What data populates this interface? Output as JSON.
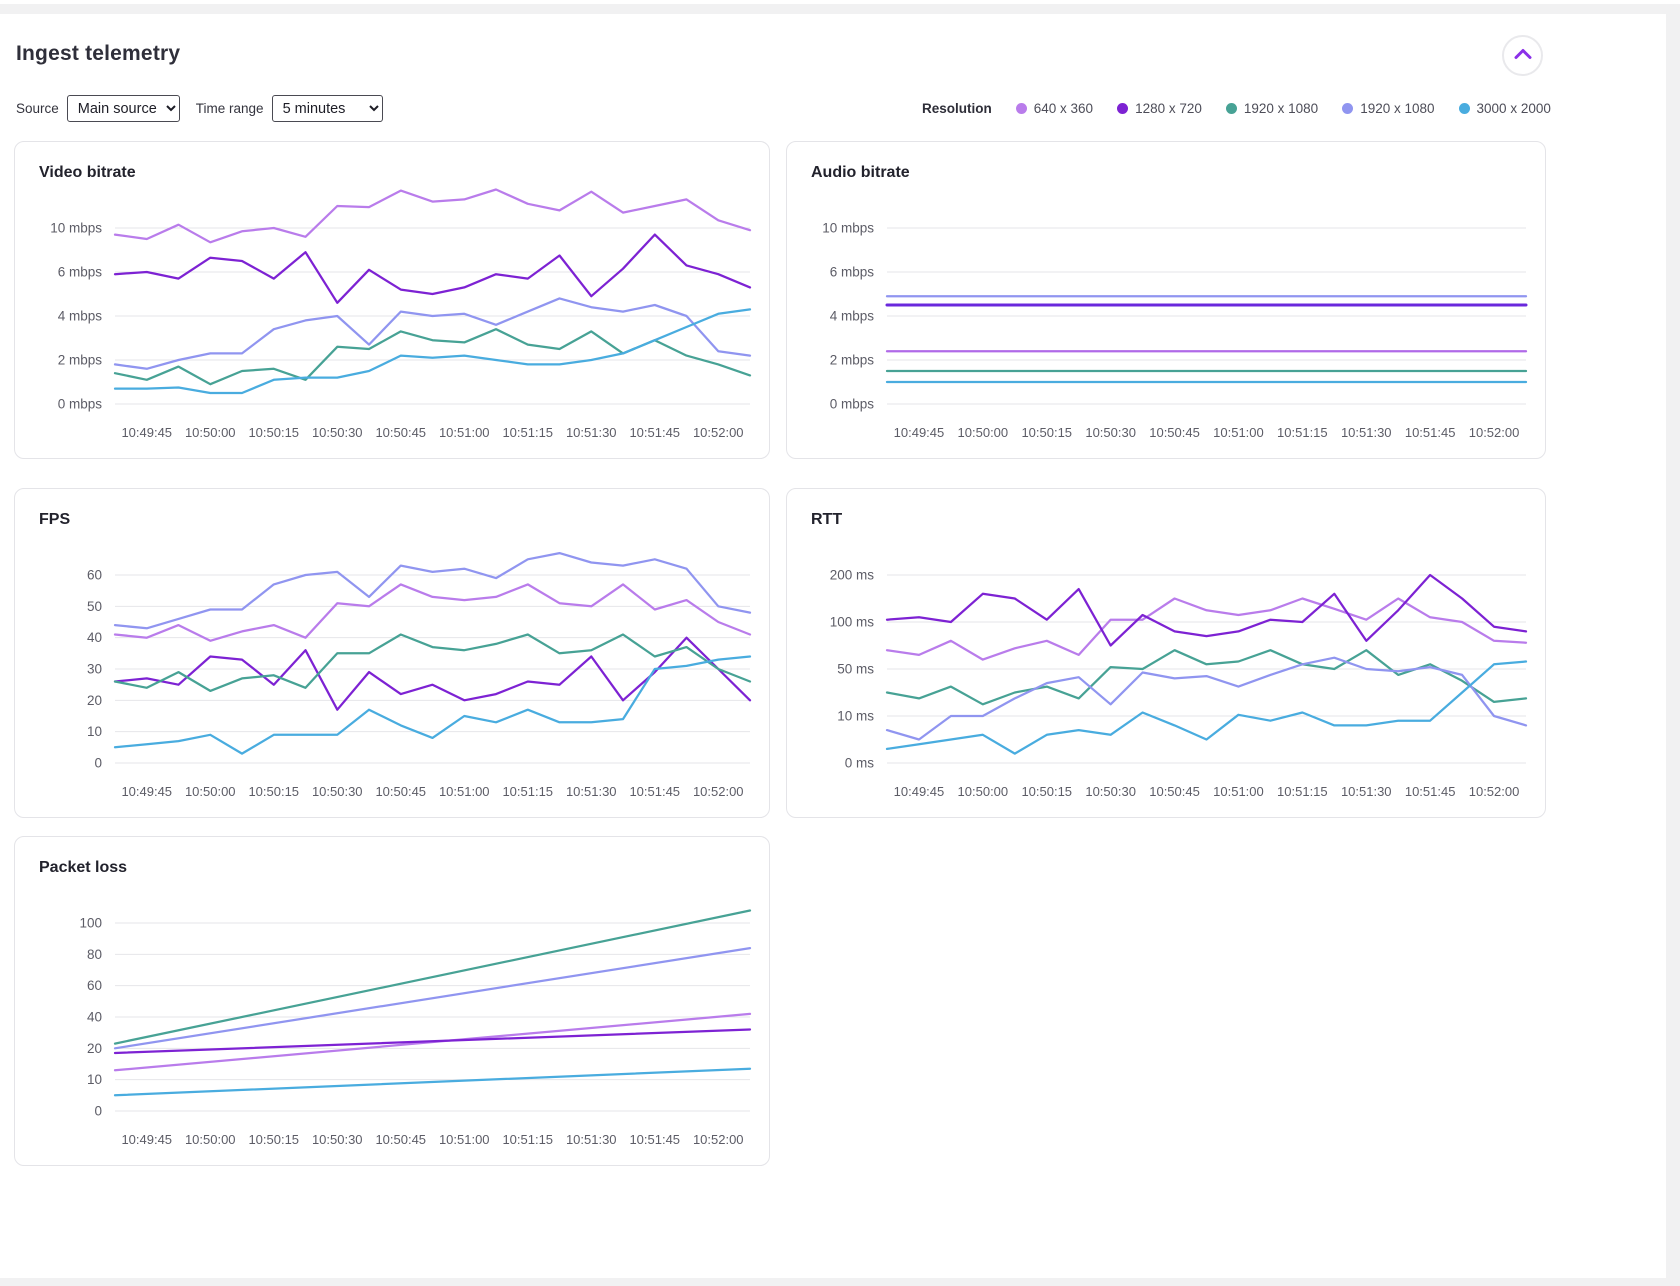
{
  "header": {
    "title": "Ingest telemetry",
    "collapse_button": {
      "icon": "chevron-up-icon",
      "color": "#8b30e8"
    }
  },
  "controls": {
    "source_label": "Source",
    "source_value": "Main source",
    "time_range_label": "Time range",
    "time_range_value": "5 minutes"
  },
  "legend": {
    "title": "Resolution",
    "items": [
      {
        "label": "640 x 360",
        "color": "#b97ceb"
      },
      {
        "label": "1280 x 720",
        "color": "#7d22d3"
      },
      {
        "label": "1920 x 1080",
        "color": "#47a295"
      },
      {
        "label": "1920 x 1080",
        "color": "#9095f0"
      },
      {
        "label": "3000 x 2000",
        "color": "#49acdf"
      }
    ]
  },
  "x_labels": [
    "10:49:45",
    "10:50:00",
    "10:50:15",
    "10:50:30",
    "10:50:45",
    "10:51:00",
    "10:51:15",
    "10:51:30",
    "10:51:45",
    "10:52:00"
  ],
  "chart_data": [
    {
      "id": "video-bitrate",
      "type": "line",
      "title": "Video bitrate",
      "y_scale": "piecewise-even-ticks",
      "grid": true,
      "legend_position": "top-right-of-page",
      "y_ticks": {
        "values": [
          0,
          2,
          4,
          6,
          10
        ],
        "labels": [
          "0 mbps",
          "2 mbps",
          "4 mbps",
          "6 mbps",
          "10 mbps"
        ]
      },
      "series": [
        {
          "name": "640 x 360",
          "color": "#b97ceb",
          "values": [
            9.4,
            9.0,
            10.3,
            8.7,
            9.7,
            10.0,
            9.2,
            12.0,
            11.9,
            13.4,
            12.4,
            12.6,
            13.5,
            12.2,
            11.6,
            13.3,
            11.4,
            12.0,
            12.6,
            10.7,
            9.8
          ]
        },
        {
          "name": "1280 x 720",
          "color": "#7d22d3",
          "values": [
            5.9,
            6.0,
            5.7,
            7.3,
            7.0,
            5.7,
            7.8,
            4.6,
            6.2,
            5.2,
            5.0,
            5.3,
            5.9,
            5.7,
            7.5,
            4.9,
            6.3,
            9.4,
            6.6,
            5.9,
            5.3
          ]
        },
        {
          "name": "1920 x 1080",
          "color": "#47a295",
          "values": [
            1.4,
            1.1,
            1.7,
            0.9,
            1.5,
            1.6,
            1.1,
            2.6,
            2.5,
            3.3,
            2.9,
            2.8,
            3.4,
            2.7,
            2.5,
            3.3,
            2.3,
            2.9,
            2.2,
            1.8,
            1.3
          ]
        },
        {
          "name": "1920 x 1080 (2)",
          "color": "#9095f0",
          "values": [
            1.8,
            1.6,
            2.0,
            2.3,
            2.3,
            3.4,
            3.8,
            4.0,
            2.7,
            4.2,
            4.0,
            4.1,
            3.6,
            4.2,
            4.8,
            4.4,
            4.2,
            4.5,
            4.0,
            2.4,
            2.2
          ]
        },
        {
          "name": "3000 x 2000",
          "color": "#49acdf",
          "values": [
            0.7,
            0.7,
            0.75,
            0.5,
            0.5,
            1.1,
            1.2,
            1.2,
            1.5,
            2.2,
            2.1,
            2.2,
            2.0,
            1.8,
            1.8,
            2.0,
            2.3,
            2.9,
            3.5,
            4.1,
            4.3
          ]
        }
      ]
    },
    {
      "id": "audio-bitrate",
      "type": "line",
      "title": "Audio bitrate",
      "y_scale": "piecewise-even-ticks",
      "grid": true,
      "y_ticks": {
        "values": [
          0,
          2,
          4,
          6,
          10
        ],
        "labels": [
          "0 mbps",
          "2 mbps",
          "4 mbps",
          "6 mbps",
          "10 mbps"
        ]
      },
      "series": [
        {
          "name": "1920 x 1080 (2)",
          "color": "#9095f0",
          "values": [
            4.9,
            4.9
          ]
        },
        {
          "name": "1280 x 720",
          "color": "#6a28dc",
          "values": [
            4.5,
            4.5
          ],
          "width": 3
        },
        {
          "name": "640 x 360",
          "color": "#b06ae8",
          "values": [
            2.4,
            2.4
          ]
        },
        {
          "name": "1920 x 1080",
          "color": "#47a295",
          "values": [
            1.5,
            1.5
          ]
        },
        {
          "name": "3000 x 2000",
          "color": "#49acdf",
          "values": [
            1.0,
            1.0
          ]
        }
      ]
    },
    {
      "id": "fps",
      "type": "line",
      "title": "FPS",
      "y_scale": "linear",
      "grid": true,
      "y_ticks": {
        "values": [
          0,
          10,
          20,
          30,
          40,
          50,
          60
        ],
        "labels": [
          "0",
          "10",
          "20",
          "30",
          "40",
          "50",
          "60"
        ]
      },
      "series": [
        {
          "name": "640 x 360",
          "color": "#b97ceb",
          "values": [
            41,
            40,
            44,
            39,
            42,
            44,
            40,
            51,
            50,
            57,
            53,
            52,
            53,
            57,
            51,
            50,
            57,
            49,
            52,
            45,
            41
          ]
        },
        {
          "name": "1280 x 720",
          "color": "#7d22d3",
          "values": [
            26,
            27,
            25,
            34,
            33,
            25,
            36,
            17,
            29,
            22,
            25,
            20,
            22,
            26,
            25,
            34,
            20,
            29,
            40,
            30,
            20
          ]
        },
        {
          "name": "1920 x 1080",
          "color": "#47a295",
          "values": [
            26,
            24,
            29,
            23,
            27,
            28,
            24,
            35,
            35,
            41,
            37,
            36,
            38,
            41,
            35,
            36,
            41,
            34,
            37,
            30,
            26
          ]
        },
        {
          "name": "1920 x 1080 (2)",
          "color": "#9095f0",
          "values": [
            44,
            43,
            46,
            49,
            49,
            57,
            60,
            61,
            53,
            63,
            61,
            62,
            59,
            65,
            67,
            64,
            63,
            65,
            62,
            50,
            48
          ]
        },
        {
          "name": "3000 x 2000",
          "color": "#49acdf",
          "values": [
            5,
            6,
            7,
            9,
            3,
            9,
            9,
            9,
            17,
            12,
            8,
            15,
            13,
            17,
            13,
            13,
            14,
            30,
            31,
            33,
            34
          ]
        }
      ]
    },
    {
      "id": "rtt",
      "type": "line",
      "title": "RTT",
      "y_scale": "piecewise-even-ticks",
      "grid": true,
      "y_ticks": {
        "values": [
          0,
          10,
          50,
          100,
          200
        ],
        "labels": [
          "0 ms",
          "10 ms",
          "50 ms",
          "100 ms",
          "200 ms"
        ]
      },
      "series": [
        {
          "name": "640 x 360",
          "color": "#b97ceb",
          "values": [
            70,
            65,
            80,
            60,
            72,
            80,
            65,
            105,
            105,
            150,
            125,
            115,
            125,
            150,
            128,
            105,
            150,
            110,
            100,
            80,
            78
          ]
        },
        {
          "name": "1280 x 720",
          "color": "#7d22d3",
          "values": [
            105,
            110,
            100,
            160,
            150,
            105,
            170,
            75,
            115,
            90,
            85,
            90,
            105,
            100,
            160,
            80,
            125,
            200,
            150,
            95,
            90
          ]
        },
        {
          "name": "1920 x 1080",
          "color": "#47a295",
          "values": [
            30,
            25,
            35,
            20,
            30,
            35,
            25,
            52,
            50,
            70,
            55,
            58,
            70,
            55,
            50,
            70,
            45,
            55,
            40,
            22,
            25
          ]
        },
        {
          "name": "1920 x 1080 (2)",
          "color": "#9095f0",
          "values": [
            7,
            5,
            10,
            10,
            25,
            38,
            43,
            20,
            47,
            42,
            44,
            35,
            45,
            55,
            62,
            50,
            48,
            52,
            45,
            10,
            8
          ]
        },
        {
          "name": "3000 x 2000",
          "color": "#49acdf",
          "values": [
            3,
            4,
            5,
            6,
            2,
            6,
            7,
            6,
            13,
            8,
            5,
            11,
            9,
            13,
            8,
            8,
            9,
            9,
            30,
            55,
            58
          ]
        }
      ]
    },
    {
      "id": "packet-loss",
      "type": "line",
      "title": "Packet loss",
      "y_scale": "piecewise-even-ticks",
      "grid": true,
      "y_ticks": {
        "values": [
          0,
          10,
          20,
          40,
          60,
          80,
          100
        ],
        "labels": [
          "0",
          "10",
          "20",
          "40",
          "60",
          "80",
          "100"
        ]
      },
      "series": [
        {
          "name": "1920 x 1080",
          "color": "#47a295",
          "values": [
            23,
            108
          ]
        },
        {
          "name": "1920 x 1080 (2)",
          "color": "#9095f0",
          "values": [
            20,
            84
          ]
        },
        {
          "name": "640 x 360",
          "color": "#b97ceb",
          "values": [
            13,
            42
          ]
        },
        {
          "name": "1280 x 720",
          "color": "#7d22d3",
          "values": [
            18.5,
            32
          ]
        },
        {
          "name": "3000 x 2000",
          "color": "#49acdf",
          "values": [
            5,
            13.5
          ]
        }
      ]
    }
  ]
}
